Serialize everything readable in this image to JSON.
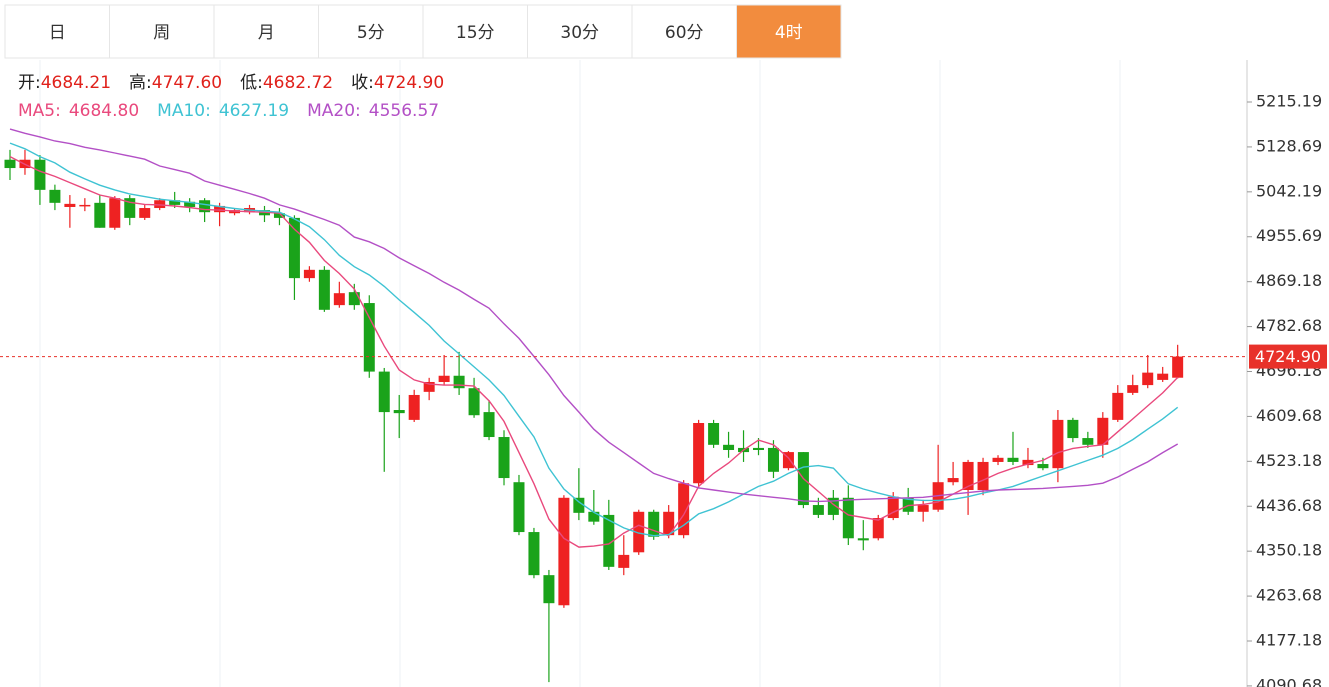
{
  "tabs": {
    "items": [
      "日",
      "周",
      "月",
      "5分",
      "15分",
      "30分",
      "60分",
      "4时"
    ],
    "active": 7,
    "active_color": "#f28c3e"
  },
  "chart_data": {
    "type": "candlestick",
    "header": [
      {
        "label": "开:",
        "value": "4684.21"
      },
      {
        "label": "高:",
        "value": "4747.60"
      },
      {
        "label": "低:",
        "value": "4682.72"
      },
      {
        "label": "收:",
        "value": "4724.90"
      }
    ],
    "open": [
      5104,
      5088,
      5104,
      5046,
      5013,
      5015,
      5021,
      4973,
      5030,
      4992,
      5011,
      5026,
      5023,
      5026,
      5003,
      5001,
      5003,
      5007,
      5001,
      4992,
      4876,
      4892,
      4824,
      4849,
      4828,
      4696,
      4622,
      4603,
      4657,
      4676,
      4688,
      4664,
      4618,
      4570,
      4483,
      4387,
      4304,
      4246,
      4453,
      4426,
      4420,
      4318,
      4348,
      4426,
      4381,
      4381,
      4481,
      4597,
      4555,
      4549,
      4549,
      4549,
      4510,
      4541,
      4439,
      4453,
      4453,
      4375,
      4375,
      4414,
      4453,
      4426,
      4430,
      4483,
      4468,
      4468,
      4522,
      4530,
      4516,
      4518,
      4510,
      4603,
      4568,
      4555,
      4603,
      4655,
      4670,
      4680,
      4684.21
    ],
    "high": [
      5123,
      5123,
      5113,
      5056,
      5036,
      5030,
      5036,
      5034,
      5036,
      5017,
      5030,
      5042,
      5030,
      5030,
      5021,
      5011,
      5017,
      5015,
      5011,
      4997,
      4899,
      4899,
      4869,
      4865,
      4843,
      4703,
      4651,
      4661,
      4684,
      4728,
      4734,
      4684,
      4641,
      4583,
      4497,
      4395,
      4314,
      4458,
      4510,
      4468,
      4449,
      4381,
      4430,
      4430,
      4439,
      4487,
      4603,
      4603,
      4580,
      4583,
      4568,
      4564,
      4543,
      4541,
      4453,
      4468,
      4477,
      4410,
      4420,
      4464,
      4472,
      4449,
      4555,
      4522,
      4526,
      4530,
      4535,
      4580,
      4549,
      4530,
      4622,
      4607,
      4580,
      4618,
      4670,
      4690,
      4728,
      4705,
      4747.6
    ],
    "low": [
      5065,
      5075,
      5017,
      5007,
      4973,
      5005,
      4973,
      4969,
      4978,
      4988,
      5007,
      5011,
      5003,
      4984,
      4976,
      4997,
      4999,
      4984,
      4978,
      4834,
      4869,
      4811,
      4819,
      4815,
      4684,
      4503,
      4568,
      4599,
      4641,
      4670,
      4651,
      4607,
      4564,
      4477,
      4381,
      4298,
      4098,
      4241,
      4410,
      4401,
      4314,
      4304,
      4343,
      4372,
      4375,
      4375,
      4472,
      4549,
      4530,
      4522,
      4535,
      4491,
      4506,
      4433,
      4414,
      4410,
      4362,
      4352,
      4371,
      4410,
      4420,
      4407,
      4426,
      4477,
      4420,
      4458,
      4516,
      4516,
      4510,
      4506,
      4483,
      4560,
      4549,
      4530,
      4599,
      4651,
      4664,
      4676,
      4682.72
    ],
    "close": [
      5088,
      5104,
      5046,
      5021,
      5019,
      5017,
      4973,
      5030,
      4992,
      5011,
      5026,
      5017,
      5013,
      5003,
      5015,
      5007,
      5011,
      4997,
      4992,
      4876,
      4892,
      4815,
      4847,
      4824,
      4696,
      4618,
      4616,
      4651,
      4676,
      4688,
      4664,
      4612,
      4570,
      4491,
      4387,
      4304,
      4250,
      4453,
      4424,
      4407,
      4320,
      4343,
      4426,
      4378,
      4426,
      4481,
      4597,
      4555,
      4545,
      4541,
      4545,
      4503,
      4541,
      4439,
      4420,
      4420,
      4375,
      4371,
      4414,
      4455,
      4426,
      4439,
      4483,
      4491,
      4522,
      4522,
      4530,
      4522,
      4526,
      4510,
      4603,
      4568,
      4555,
      4607,
      4655,
      4670,
      4694,
      4692,
      4724.9
    ],
    "up_color": "#ee2222",
    "down_color": "#1aa31a",
    "series": [
      {
        "name": "MA5:",
        "value_label": "4684.80",
        "color": "#e9497d",
        "values": [
          5110,
          5095,
          5082,
          5072,
          5060,
          5048,
          5036,
          5030,
          5022,
          5018,
          5017,
          5015,
          5012,
          5008,
          5007,
          5005,
          5004,
          5003,
          5001,
          4970,
          4945,
          4910,
          4885,
          4855,
          4800,
          4745,
          4699,
          4680,
          4672,
          4670,
          4670,
          4668,
          4640,
          4600,
          4540,
          4480,
          4412,
          4375,
          4358,
          4360,
          4364,
          4385,
          4400,
          4390,
          4380,
          4420,
          4475,
          4500,
          4520,
          4545,
          4564,
          4555,
          4530,
          4490,
          4465,
          4440,
          4420,
          4415,
          4410,
          4425,
          4438,
          4440,
          4445,
          4460,
          4475,
          4487,
          4500,
          4510,
          4518,
          4525,
          4540,
          4548,
          4552,
          4555,
          4580,
          4605,
          4630,
          4655,
          4684.8
        ]
      },
      {
        "name": "MA10:",
        "value_label": "4627.19",
        "color": "#3fc3d3",
        "values": [
          5136,
          5125,
          5110,
          5098,
          5080,
          5067,
          5055,
          5046,
          5038,
          5033,
          5028,
          5025,
          5022,
          5018,
          5014,
          5010,
          5007,
          5005,
          5003,
          4990,
          4975,
          4950,
          4920,
          4898,
          4882,
          4860,
          4834,
          4810,
          4785,
          4755,
          4730,
          4705,
          4680,
          4650,
          4610,
          4570,
          4510,
          4470,
          4445,
          4425,
          4410,
          4395,
          4385,
          4380,
          4382,
          4400,
          4422,
          4432,
          4445,
          4460,
          4475,
          4485,
          4500,
          4512,
          4515,
          4510,
          4480,
          4470,
          4462,
          4455,
          4450,
          4448,
          4448,
          4450,
          4455,
          4462,
          4468,
          4475,
          4485,
          4495,
          4505,
          4515,
          4525,
          4535,
          4548,
          4565,
          4585,
          4605,
          4627.19
        ]
      },
      {
        "name": "MA20:",
        "value_label": "4556.57",
        "color": "#b350c6",
        "values": [
          5163,
          5155,
          5148,
          5140,
          5135,
          5128,
          5123,
          5117,
          5111,
          5105,
          5092,
          5085,
          5078,
          5063,
          5055,
          5047,
          5039,
          5030,
          5017,
          5009,
          4999,
          4989,
          4978,
          4955,
          4946,
          4933,
          4915,
          4900,
          4885,
          4868,
          4853,
          4835,
          4818,
          4788,
          4760,
          4725,
          4690,
          4650,
          4618,
          4585,
          4560,
          4540,
          4520,
          4500,
          4490,
          4481,
          4472,
          4468,
          4464,
          4460,
          4457,
          4454,
          4451,
          4447,
          4446,
          4447,
          4449,
          4450,
          4451,
          4452,
          4453,
          4454,
          4457,
          4460,
          4463,
          4466,
          4468,
          4469,
          4470,
          4471,
          4473,
          4475,
          4477,
          4481,
          4493,
          4508,
          4522,
          4540,
          4556.57
        ]
      }
    ],
    "last_price": {
      "value": 4724.9,
      "label": "4724.90",
      "color": "#e8312a"
    },
    "ylim": [
      4088.6,
      5296.07
    ],
    "yticks": [
      5215.19,
      5128.69,
      5042.19,
      4955.69,
      4869.18,
      4782.68,
      4696.18,
      4609.68,
      4523.18,
      4436.68,
      4350.18,
      4263.68,
      4177.18,
      4090.68
    ]
  }
}
